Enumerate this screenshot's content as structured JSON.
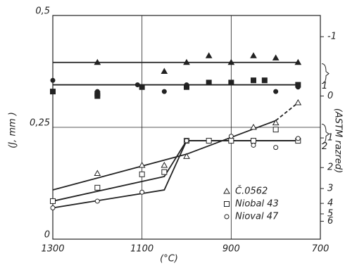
{
  "chart_data": {
    "type": "scatter",
    "x_label": "(°C)",
    "y_label": "(J, mm )",
    "y2_label": "(ASTM razred)",
    "xlim": [
      1300,
      700
    ],
    "xticks": [
      1300,
      1100,
      900,
      700
    ],
    "ylim": [
      0,
      0.5
    ],
    "yticks": [
      0,
      {
        "value": 0.25,
        "label": "0,25"
      },
      {
        "value": 0.5,
        "label": "0,5"
      }
    ],
    "y2scale": "astm",
    "y2ticks": [
      -1,
      0,
      1,
      2,
      3,
      4,
      5,
      6
    ],
    "grid": true,
    "legend": "lower right",
    "color": "#222222",
    "series": [
      {
        "name": "Č.0562",
        "marker": "triangle",
        "filled": false,
        "x": [
          1200,
          1100,
          1050,
          1000,
          850,
          800,
          750
        ],
        "values": [
          0.147,
          0.165,
          0.165,
          0.185,
          0.25,
          0.26,
          0.305
        ]
      },
      {
        "name": "Niobal 43",
        "marker": "square",
        "filled": false,
        "x": [
          1300,
          1200,
          1100,
          1050,
          1000,
          950,
          900,
          850,
          800,
          750
        ],
        "values": [
          0.085,
          0.115,
          0.145,
          0.15,
          0.22,
          0.22,
          0.22,
          0.22,
          0.245,
          0.22
        ]
      },
      {
        "name": "Nioval 47",
        "marker": "circle",
        "filled": false,
        "x": [
          1300,
          1200,
          1100,
          1000,
          900,
          850,
          800,
          750
        ],
        "values": [
          0.07,
          0.085,
          0.105,
          0.22,
          0.23,
          0.21,
          0.205,
          0.225
        ]
      },
      {
        "marker": "triangle",
        "filled": true,
        "x": [
          1200,
          1050,
          1000,
          950,
          900,
          850,
          800,
          750
        ],
        "values": [
          0.395,
          0.375,
          0.395,
          0.41,
          0.395,
          0.41,
          0.405,
          0.395
        ]
      },
      {
        "marker": "square",
        "filled": true,
        "x": [
          1300,
          1200,
          1200,
          1100,
          1000,
          950,
          900,
          850,
          825,
          750
        ],
        "values": [
          0.33,
          0.325,
          0.32,
          0.34,
          0.34,
          0.35,
          0.35,
          0.355,
          0.355,
          0.345
        ]
      },
      {
        "marker": "circle",
        "filled": true,
        "x": [
          1300,
          1200,
          1110,
          1050,
          1000,
          900,
          850,
          800,
          750
        ],
        "values": [
          0.355,
          0.33,
          0.345,
          0.33,
          0.345,
          0.35,
          0.355,
          0.33,
          0.34
        ]
      }
    ],
    "fit_lines": [
      {
        "x": [
          1300,
          750
        ],
        "values": [
          0.395,
          0.395
        ],
        "style": "solid"
      },
      {
        "x": [
          1300,
          750
        ],
        "values": [
          0.345,
          0.345
        ],
        "style": "solid"
      },
      {
        "x": [
          1300,
          1000,
          800
        ],
        "values": [
          0.11,
          0.19,
          0.265
        ],
        "style": "solid"
      },
      {
        "x": [
          800,
          750
        ],
        "values": [
          0.265,
          0.305
        ],
        "style": "dashed"
      },
      {
        "x": [
          1300,
          1050,
          1000,
          750
        ],
        "values": [
          0.085,
          0.14,
          0.22,
          0.22
        ],
        "style": "solid"
      },
      {
        "x": [
          1300,
          1050,
          1000,
          750
        ],
        "values": [
          0.07,
          0.11,
          0.22,
          0.22
        ],
        "style": "solid"
      }
    ],
    "annotations": [
      {
        "text": "1",
        "y": 0.37
      },
      {
        "text": "2",
        "y": 0.235
      }
    ]
  }
}
